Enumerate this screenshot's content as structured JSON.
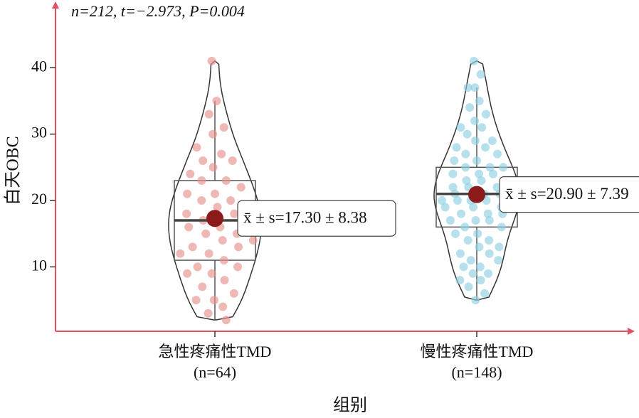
{
  "chart_data": {
    "type": "violin",
    "annotation": "n=212, t=−2.973, P=0.004",
    "y_label": "白天OBC",
    "x_label": "组别",
    "ylim": [
      0.3,
      50.2
    ],
    "yticks": [
      10,
      20,
      30,
      40
    ],
    "grid": false,
    "groups": [
      {
        "name": "急性疼痛性TMD",
        "n_label": "(n=64)",
        "color": "#e8928e",
        "mean": 17.3,
        "sd": 8.38,
        "mean_label": "x̄ ± s=17.30 ± 8.38",
        "box": {
          "whisker_low": 2,
          "q1": 11,
          "median": 17,
          "q3": 23,
          "whisker_high": 35
        },
        "points": [
          41,
          35,
          33,
          31,
          30,
          28,
          27,
          26,
          26,
          25,
          24,
          23,
          23,
          22,
          21,
          21,
          20,
          20,
          19,
          19,
          18,
          18,
          17,
          17,
          16,
          16,
          15,
          15,
          14,
          14,
          13,
          13,
          12,
          12,
          11,
          10,
          10,
          9,
          9,
          8,
          7,
          6,
          5,
          5,
          4,
          3,
          2
        ]
      },
      {
        "name": "慢性疼痛性TMD",
        "n_label": "(n=148)",
        "color": "#8ecfe2",
        "mean": 20.9,
        "sd": 7.39,
        "mean_label": "x̄ ± s=20.90 ± 7.39",
        "box": {
          "whisker_low": 5,
          "q1": 16,
          "median": 21,
          "q3": 25,
          "whisker_high": 37
        },
        "points": [
          41,
          39,
          37,
          37,
          35,
          34,
          33,
          32,
          31,
          31,
          30,
          29,
          29,
          28,
          28,
          27,
          27,
          26,
          26,
          25,
          25,
          25,
          24,
          24,
          24,
          23,
          23,
          23,
          22,
          22,
          22,
          21,
          21,
          21,
          21,
          20,
          20,
          20,
          20,
          19,
          19,
          19,
          18,
          18,
          18,
          17,
          17,
          17,
          16,
          16,
          15,
          15,
          14,
          14,
          13,
          13,
          12,
          12,
          11,
          11,
          10,
          10,
          9,
          9,
          8,
          8,
          7,
          6,
          5
        ]
      }
    ]
  }
}
